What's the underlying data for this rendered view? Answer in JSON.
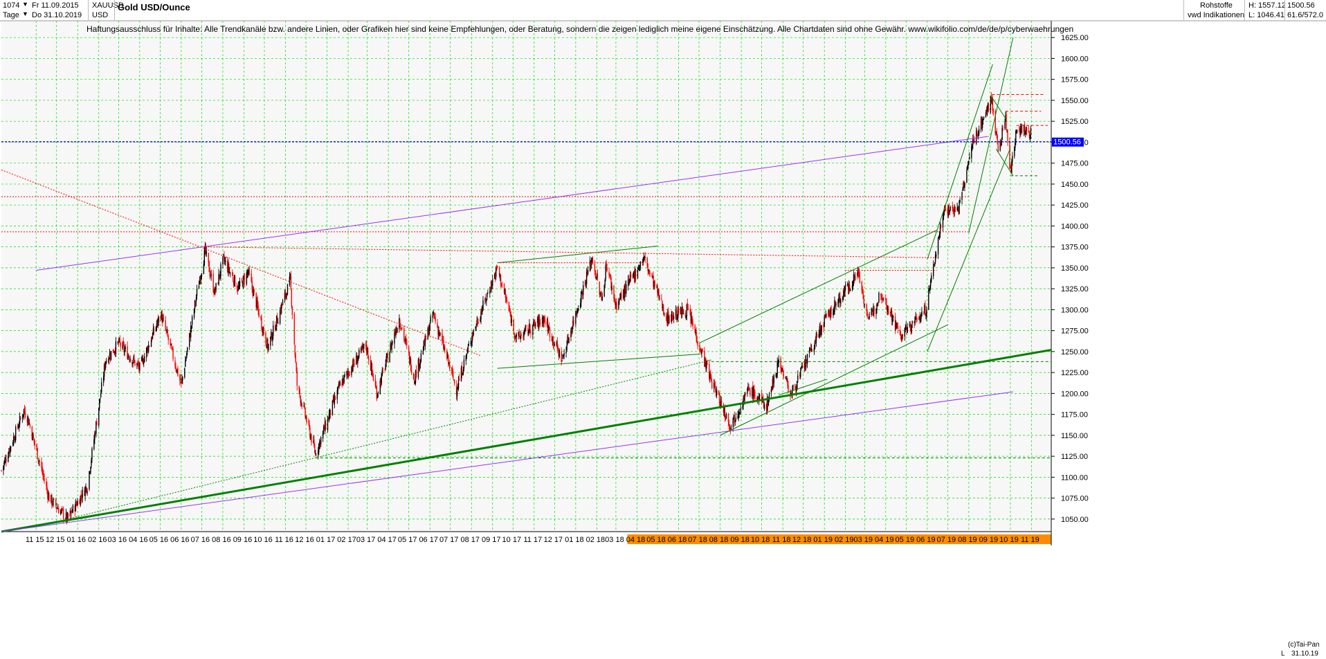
{
  "header": {
    "count": "1074",
    "start_date": "Fr 11.09.2015",
    "interval": "Tage",
    "end_date": "Do 31.10.2019",
    "symbol": "XAUUSD",
    "currency": "USD",
    "title": "Gold USD/Ounce",
    "disclaimer": "Haftungsausschluss für Inhalte: Alle Trendkanäle bzw. andere Linien, oder Grafiken hier sind keine Empfehlungen, oder Beratung, sondern die zeigen lediglich meine eigene Einschätzung. Alle Chartdaten sind ohne Gewähr.  www.wikifolio.com/de/de/p/cyberwaehrungen",
    "category": "Rohstoffe",
    "source": "vwd Indikationen",
    "high_label": "H: 1557.12",
    "low_label": "L: 1046.41",
    "last_value": "1500.56",
    "ratio": "61.6/572.0"
  },
  "footer": {
    "copyright": "(c)Tai-Pan",
    "last_date": "31.10.19",
    "scale_mode": "L"
  },
  "colors": {
    "up": "#000000",
    "down": "#ff0000",
    "grid": "#00dd00",
    "current": "#0000ff",
    "trend_green": "#008000",
    "trend_purple": "#9b30ff",
    "axis_highlight": "#ff8c00"
  },
  "chart_data": {
    "type": "candlestick",
    "title": "Gold USD/Ounce",
    "ylim": [
      1035,
      1645
    ],
    "yticks": [
      1050,
      1075,
      1100,
      1125,
      1150,
      1175,
      1200,
      1225,
      1250,
      1275,
      1300,
      1325,
      1350,
      1375,
      1400,
      1425,
      1450,
      1475,
      1500,
      1525,
      1550,
      1575,
      1600,
      1625
    ],
    "current_price": 1500.56,
    "xticks": [
      "11 15",
      "12 15",
      "01 16",
      "02 16",
      "03 16",
      "04 16",
      "05 16",
      "06 16",
      "07 16",
      "08 16",
      "09 16",
      "10 16",
      "11 16",
      "12 16",
      "01 17",
      "02 17",
      "03 17",
      "04 17",
      "05 17",
      "06 17",
      "07 17",
      "08 17",
      "09 17",
      "10 17",
      "11 17",
      "12 17",
      "01 18",
      "02 18",
      "03 18",
      "04 18",
      "05 18",
      "06 18",
      "07 18",
      "08 18",
      "09 18",
      "10 18",
      "11 18",
      "12 18",
      "01 19",
      "02 19",
      "03 19",
      "04 19",
      "05 19",
      "06 19",
      "07 19",
      "08 19",
      "09 19",
      "10 19",
      "11 19"
    ],
    "highlight_ticks": [
      "04 18",
      "05 18",
      "06 18",
      "07 18",
      "08 18",
      "09 18",
      "10 18",
      "11 18",
      "12 18",
      "01 19",
      "02 19",
      "03 19",
      "04 19",
      "05 19",
      "06 19",
      "07 19",
      "08 19",
      "09 19",
      "10 19",
      "11 19"
    ],
    "price_path": [
      [
        "2015-09-11",
        1108
      ],
      [
        "2015-10-14",
        1180
      ],
      [
        "2015-10-20",
        1170
      ],
      [
        "2015-11-20",
        1075
      ],
      [
        "2015-12-17",
        1050
      ],
      [
        "2016-01-15",
        1090
      ],
      [
        "2016-02-11",
        1240
      ],
      [
        "2016-03-01",
        1260
      ],
      [
        "2016-04-01",
        1230
      ],
      [
        "2016-05-02",
        1295
      ],
      [
        "2016-06-01",
        1210
      ],
      [
        "2016-06-24",
        1320
      ],
      [
        "2016-07-06",
        1370
      ],
      [
        "2016-07-20",
        1320
      ],
      [
        "2016-08-02",
        1360
      ],
      [
        "2016-08-24",
        1325
      ],
      [
        "2016-09-07",
        1345
      ],
      [
        "2016-10-06",
        1255
      ],
      [
        "2016-11-08",
        1335
      ],
      [
        "2016-11-18",
        1210
      ],
      [
        "2016-12-15",
        1128
      ],
      [
        "2017-01-20",
        1210
      ],
      [
        "2017-02-27",
        1258
      ],
      [
        "2017-03-15",
        1200
      ],
      [
        "2017-04-17",
        1290
      ],
      [
        "2017-05-09",
        1218
      ],
      [
        "2017-06-06",
        1295
      ],
      [
        "2017-07-10",
        1205
      ],
      [
        "2017-08-02",
        1270
      ],
      [
        "2017-09-08",
        1350
      ],
      [
        "2017-10-06",
        1265
      ],
      [
        "2017-11-15",
        1290
      ],
      [
        "2017-12-12",
        1240
      ],
      [
        "2018-01-25",
        1362
      ],
      [
        "2018-02-08",
        1310
      ],
      [
        "2018-02-15",
        1355
      ],
      [
        "2018-03-01",
        1305
      ],
      [
        "2018-04-11",
        1362
      ],
      [
        "2018-05-15",
        1290
      ],
      [
        "2018-06-14",
        1300
      ],
      [
        "2018-07-19",
        1215
      ],
      [
        "2018-08-16",
        1162
      ],
      [
        "2018-09-12",
        1205
      ],
      [
        "2018-10-08",
        1185
      ],
      [
        "2018-10-26",
        1240
      ],
      [
        "2018-11-13",
        1198
      ],
      [
        "2018-12-31",
        1285
      ],
      [
        "2019-01-31",
        1322
      ],
      [
        "2019-02-20",
        1345
      ],
      [
        "2019-03-07",
        1285
      ],
      [
        "2019-03-25",
        1322
      ],
      [
        "2019-04-23",
        1268
      ],
      [
        "2019-05-30",
        1300
      ],
      [
        "2019-06-25",
        1420
      ],
      [
        "2019-07-17",
        1420
      ],
      [
        "2019-08-07",
        1500
      ],
      [
        "2019-09-04",
        1552
      ],
      [
        "2019-09-13",
        1488
      ],
      [
        "2019-09-24",
        1530
      ],
      [
        "2019-10-01",
        1462
      ],
      [
        "2019-10-10",
        1518
      ],
      [
        "2019-10-31",
        1510
      ]
    ],
    "trendlines": [
      {
        "color": "green",
        "style": "solid",
        "width": 3,
        "from": [
          "2015-09-11",
          1035
        ],
        "to": [
          "2019-11-30",
          1252
        ]
      },
      {
        "color": "purple",
        "style": "solid",
        "width": 1,
        "from": [
          "2015-09-11",
          1035
        ],
        "to": [
          "2019-10-05",
          1202
        ]
      },
      {
        "color": "purple",
        "style": "solid",
        "width": 1,
        "from": [
          "2015-11-01",
          1347
        ],
        "to": [
          "2019-08-30",
          1507
        ]
      },
      {
        "color": "green",
        "style": "dotted",
        "width": 1,
        "from": [
          "2015-12-17",
          1050
        ],
        "to": [
          "2018-07-19",
          1240
        ]
      },
      {
        "color": "green",
        "style": "solid",
        "width": 1,
        "from": [
          "2017-09-08",
          1356
        ],
        "to": [
          "2018-05-01",
          1376
        ]
      },
      {
        "color": "green",
        "style": "solid",
        "width": 1,
        "from": [
          "2017-09-08",
          1230
        ],
        "to": [
          "2018-07-02",
          1247
        ]
      },
      {
        "color": "green",
        "style": "solid",
        "width": 1,
        "from": [
          "2018-07-01",
          1260
        ],
        "to": [
          "2019-06-15",
          1395
        ]
      },
      {
        "color": "green",
        "style": "solid",
        "width": 1,
        "from": [
          "2018-08-01",
          1150
        ],
        "to": [
          "2019-07-01",
          1282
        ]
      },
      {
        "color": "green",
        "style": "solid",
        "width": 1,
        "from": [
          "2019-06-01",
          1360
        ],
        "to": [
          "2019-09-05",
          1593
        ]
      },
      {
        "color": "green",
        "style": "solid",
        "width": 1,
        "from": [
          "2019-06-01",
          1250
        ],
        "to": [
          "2019-10-01",
          1493
        ]
      },
      {
        "color": "green",
        "style": "solid",
        "width": 1,
        "from": [
          "2019-08-01",
          1392
        ],
        "to": [
          "2019-10-05",
          1625
        ]
      },
      {
        "color": "green",
        "style": "solid",
        "width": 1,
        "from": [
          "2019-09-02",
          1556
        ],
        "to": [
          "2019-09-25",
          1527
        ]
      },
      {
        "color": "green",
        "style": "solid",
        "width": 1,
        "from": [
          "2019-09-10",
          1492
        ],
        "to": [
          "2019-10-05",
          1460
        ]
      },
      {
        "color": "green",
        "style": "solid",
        "width": 1,
        "from": [
          "2018-10-26",
          1198
        ],
        "to": [
          "2019-01-05",
          1217
        ]
      },
      {
        "color": "red",
        "style": "dotted",
        "width": 1,
        "from": [
          "2015-09-11",
          1467
        ],
        "to": [
          "2017-08-15",
          1245
        ]
      },
      {
        "color": "red",
        "style": "dotted",
        "width": 1,
        "from": [
          "2016-07-06",
          1375
        ],
        "to": [
          "2019-06-15",
          1362
        ]
      },
      {
        "color": "red",
        "style": "dotted",
        "width": 1,
        "from": [
          "2019-01-31",
          1347
        ],
        "to": [
          "2019-06-15",
          1347
        ]
      },
      {
        "color": "red",
        "style": "dotted",
        "width": 1,
        "from": [
          "2015-09-11",
          1393
        ],
        "to": [
          "2019-08-01",
          1393
        ]
      },
      {
        "color": "red",
        "style": "dotted",
        "width": 1,
        "from": [
          "2015-09-11",
          1435
        ],
        "to": [
          "2019-08-01",
          1435
        ]
      },
      {
        "color": "red",
        "style": "dotted",
        "width": 1,
        "from": [
          "2017-09-08",
          1356
        ],
        "to": [
          "2018-04-11",
          1356
        ]
      },
      {
        "color": "red",
        "style": "dashed",
        "width": 1,
        "from": [
          "2019-09-04",
          1557
        ],
        "to": [
          "2019-11-20",
          1557
        ]
      },
      {
        "color": "red",
        "style": "dashed",
        "width": 1,
        "from": [
          "2019-09-24",
          1537
        ],
        "to": [
          "2019-11-15",
          1537
        ]
      },
      {
        "color": "red",
        "style": "dashed",
        "width": 1,
        "from": [
          "2019-10-10",
          1520
        ],
        "to": [
          "2019-11-25",
          1520
        ]
      },
      {
        "color": "green",
        "style": "dashed",
        "width": 1,
        "from": [
          "2016-12-15",
          1123
        ],
        "to": [
          "2019-11-30",
          1123
        ]
      },
      {
        "color": "green",
        "style": "dashed",
        "width": 1,
        "from": [
          "2018-07-19",
          1238
        ],
        "to": [
          "2019-11-30",
          1238
        ]
      },
      {
        "color": "green",
        "style": "dashed",
        "width": 1,
        "from": [
          "2019-10-01",
          1460
        ],
        "to": [
          "2019-11-10",
          1460
        ]
      }
    ]
  }
}
